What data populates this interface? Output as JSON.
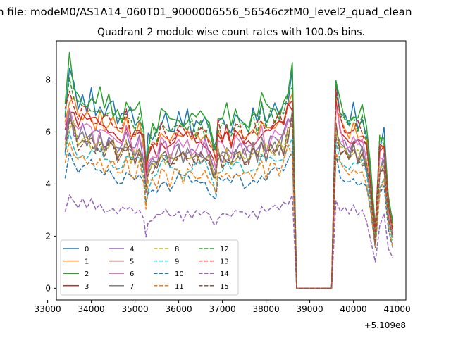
{
  "figure": {
    "suptitle": "n file: modeM0/AS1A14_060T01_9000006556_56546cztM0_level2_quad_clean"
  },
  "chart_data": {
    "type": "line",
    "title": "Quadrant 2 module wise count rates with 100.0s bins.",
    "xlabel": "",
    "ylabel": "",
    "x_offset_label": "+5.109e8",
    "xlim": [
      33200,
      41200
    ],
    "ylim": [
      -0.45,
      9.5
    ],
    "x_ticks": [
      33000,
      34000,
      35000,
      36000,
      37000,
      38000,
      39000,
      40000,
      41000
    ],
    "x_tick_labels": [
      "33000",
      "34000",
      "35000",
      "36000",
      "37000",
      "38000",
      "39000",
      "40000",
      "41000"
    ],
    "y_ticks": [
      0,
      2,
      4,
      6,
      8
    ],
    "y_tick_labels": [
      "0",
      "2",
      "4",
      "6",
      "8"
    ],
    "grid": false,
    "legend_position": "lower-left",
    "legend_columns": 4,
    "anchors": {
      "x": [
        33400,
        33500,
        33600,
        33700,
        33800,
        33900,
        34000,
        34100,
        34200,
        34300,
        34400,
        34500,
        34600,
        34700,
        34800,
        34900,
        35000,
        35100,
        35200,
        35250,
        35300,
        35400,
        35500,
        35600,
        35700,
        35800,
        35900,
        36000,
        36100,
        36200,
        36300,
        36400,
        36500,
        36600,
        36700,
        36800,
        36850,
        36900,
        37000,
        37100,
        37200,
        37300,
        37400,
        37500,
        37600,
        37700,
        37800,
        37900,
        38000,
        38100,
        38200,
        38300,
        38400,
        38500,
        38600,
        38700,
        38800,
        38900,
        39000,
        39100,
        39200,
        39300,
        39400,
        39500,
        39600,
        39700,
        39800,
        39900,
        40000,
        40100,
        40200,
        40300,
        40400,
        40500,
        40600,
        40700,
        40800,
        40900
      ],
      "shape": [
        0.9,
        1.08,
        1.0,
        0.95,
        0.97,
        0.92,
        0.94,
        0.9,
        0.93,
        0.88,
        0.92,
        0.9,
        0.89,
        0.87,
        0.9,
        0.86,
        0.84,
        0.88,
        0.79,
        0.62,
        0.74,
        0.81,
        0.79,
        0.83,
        0.85,
        0.8,
        0.84,
        0.86,
        0.82,
        0.86,
        0.83,
        0.84,
        0.81,
        0.85,
        0.8,
        0.76,
        0.7,
        0.85,
        0.83,
        0.86,
        0.79,
        0.84,
        0.86,
        0.82,
        0.85,
        0.86,
        0.84,
        0.92,
        0.87,
        0.89,
        0.88,
        0.9,
        0.92,
        1.0,
        1.05,
        0.0,
        0.0,
        0.0,
        0.0,
        0.0,
        0.0,
        0.0,
        0.0,
        0.0,
        1.02,
        0.9,
        0.88,
        0.85,
        0.87,
        0.84,
        0.86,
        0.78,
        0.55,
        0.3,
        0.74,
        0.8,
        0.45,
        0.32
      ]
    },
    "series": [
      {
        "name": "0",
        "color": "#1f77b4",
        "dash": "solid",
        "level": 7.6,
        "seed": 1
      },
      {
        "name": "1",
        "color": "#ff7f0e",
        "dash": "solid",
        "level": 7.0,
        "seed": 2
      },
      {
        "name": "2",
        "color": "#2ca02c",
        "dash": "solid",
        "level": 7.8,
        "seed": 3
      },
      {
        "name": "3",
        "color": "#d62728",
        "dash": "solid",
        "level": 6.8,
        "seed": 4
      },
      {
        "name": "4",
        "color": "#9467bd",
        "dash": "solid",
        "level": 6.3,
        "seed": 5
      },
      {
        "name": "5",
        "color": "#8c564b",
        "dash": "solid",
        "level": 6.0,
        "seed": 6
      },
      {
        "name": "6",
        "color": "#e377c2",
        "dash": "solid",
        "level": 6.5,
        "seed": 7
      },
      {
        "name": "7",
        "color": "#7f7f7f",
        "dash": "solid",
        "level": 6.1,
        "seed": 8
      },
      {
        "name": "8",
        "color": "#bcbd22",
        "dash": "dashed",
        "level": 6.0,
        "seed": 9
      },
      {
        "name": "9",
        "color": "#17becf",
        "dash": "dashed",
        "level": 5.5,
        "seed": 10
      },
      {
        "name": "10",
        "color": "#1f77b4",
        "dash": "dashed",
        "level": 4.9,
        "seed": 11
      },
      {
        "name": "11",
        "color": "#ff7f0e",
        "dash": "dashed",
        "level": 5.2,
        "seed": 12
      },
      {
        "name": "12",
        "color": "#2ca02c",
        "dash": "dashed",
        "level": 7.4,
        "seed": 13
      },
      {
        "name": "13",
        "color": "#d62728",
        "dash": "dashed",
        "level": 7.1,
        "seed": 14
      },
      {
        "name": "14",
        "color": "#9467bd",
        "dash": "dashed",
        "level": 3.4,
        "seed": 15
      },
      {
        "name": "15",
        "color": "#8c564b",
        "dash": "dashed",
        "level": 5.9,
        "seed": 16
      }
    ]
  }
}
